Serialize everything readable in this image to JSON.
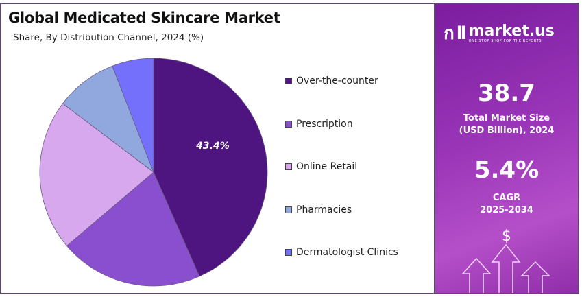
{
  "chart_data": {
    "type": "pie",
    "title": "Global Medicated Skincare Market",
    "subtitle": "Share, By Distribution Channel, 2024 (%)",
    "legend_position": "right",
    "categories": [
      "Over-the-counter",
      "Prescription",
      "Online Retail",
      "Pharmacies",
      "Dermatologist Clinics"
    ],
    "values": [
      43.4,
      20.4,
      21.5,
      8.8,
      5.9
    ],
    "colors": [
      "#4e1581",
      "#8a4fcf",
      "#d7a8ee",
      "#91a8de",
      "#7470fb"
    ],
    "data_labels": [
      "43.4%",
      "",
      "",
      "",
      ""
    ]
  },
  "sidebar": {
    "brand": "market.us",
    "tagline": "ONE STOP SHOP FOR THE REPORTS",
    "market_size_value": "38.7",
    "market_size_label_1": "Total Market Size",
    "market_size_label_2": "(USD Billion), 2024",
    "cagr_value": "5.4%",
    "cagr_label": "CAGR",
    "cagr_period": "2025-2034",
    "dollar_symbol": "$"
  }
}
